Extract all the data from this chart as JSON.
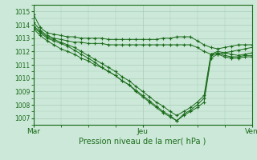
{
  "title": "Pression niveau de la mer( hPa )",
  "xlabel_ticks": [
    "Mar",
    "Jeu",
    "Ven"
  ],
  "xlabel_tick_positions": [
    0,
    16,
    32
  ],
  "ylim": [
    1006.5,
    1015.5
  ],
  "yticks": [
    1007,
    1008,
    1009,
    1010,
    1011,
    1012,
    1013,
    1014,
    1015
  ],
  "xlim": [
    0,
    32
  ],
  "bg_color": "#cce8d8",
  "grid_color": "#aaccbb",
  "line_color": "#1a6b1a",
  "marker": "+",
  "series": [
    [
      1014.8,
      1013.8,
      1013.4,
      1013.3,
      1013.2,
      1013.1,
      1013.1,
      1013.0,
      1013.0,
      1013.0,
      1013.0,
      1012.9,
      1012.9,
      1012.9,
      1012.9,
      1012.9,
      1012.9,
      1012.9,
      1012.9,
      1013.0,
      1013.0,
      1013.1,
      1013.1,
      1013.1,
      1012.8,
      1012.5,
      1012.3,
      1012.2,
      1012.3,
      1012.4,
      1012.5,
      1012.5,
      1012.5
    ],
    [
      1014.2,
      1013.6,
      1013.2,
      1013.0,
      1012.9,
      1012.8,
      1012.7,
      1012.7,
      1012.6,
      1012.6,
      1012.6,
      1012.5,
      1012.5,
      1012.5,
      1012.5,
      1012.5,
      1012.5,
      1012.5,
      1012.5,
      1012.5,
      1012.5,
      1012.5,
      1012.5,
      1012.5,
      1012.3,
      1012.0,
      1011.8,
      1011.8,
      1011.9,
      1012.0,
      1012.1,
      1012.2,
      1012.3
    ],
    [
      1013.7,
      1013.2,
      1012.8,
      1012.5,
      1012.2,
      1012.0,
      1011.8,
      1011.5,
      1011.3,
      1011.0,
      1010.8,
      1010.5,
      1010.2,
      1009.8,
      1009.5,
      1009.0,
      1008.6,
      1008.2,
      1007.8,
      1007.4,
      1007.1,
      1006.8,
      1007.2,
      1007.5,
      1007.8,
      1008.2,
      1011.5,
      1011.8,
      1011.6,
      1011.5,
      1011.5,
      1011.6,
      1011.6
    ],
    [
      1013.8,
      1013.4,
      1013.0,
      1012.8,
      1012.6,
      1012.4,
      1012.1,
      1011.8,
      1011.5,
      1011.2,
      1010.8,
      1010.5,
      1010.2,
      1009.8,
      1009.5,
      1009.1,
      1008.7,
      1008.3,
      1007.9,
      1007.5,
      1007.2,
      1006.8,
      1007.3,
      1007.6,
      1008.0,
      1008.5,
      1011.7,
      1011.9,
      1011.7,
      1011.6,
      1011.6,
      1011.7,
      1011.7
    ],
    [
      1013.9,
      1013.5,
      1013.1,
      1012.9,
      1012.7,
      1012.5,
      1012.3,
      1012.0,
      1011.7,
      1011.4,
      1011.1,
      1010.8,
      1010.5,
      1010.1,
      1009.8,
      1009.4,
      1009.0,
      1008.6,
      1008.2,
      1007.9,
      1007.5,
      1007.2,
      1007.5,
      1007.8,
      1008.2,
      1008.7,
      1011.8,
      1012.0,
      1011.9,
      1011.8,
      1011.7,
      1011.8,
      1011.9
    ]
  ]
}
